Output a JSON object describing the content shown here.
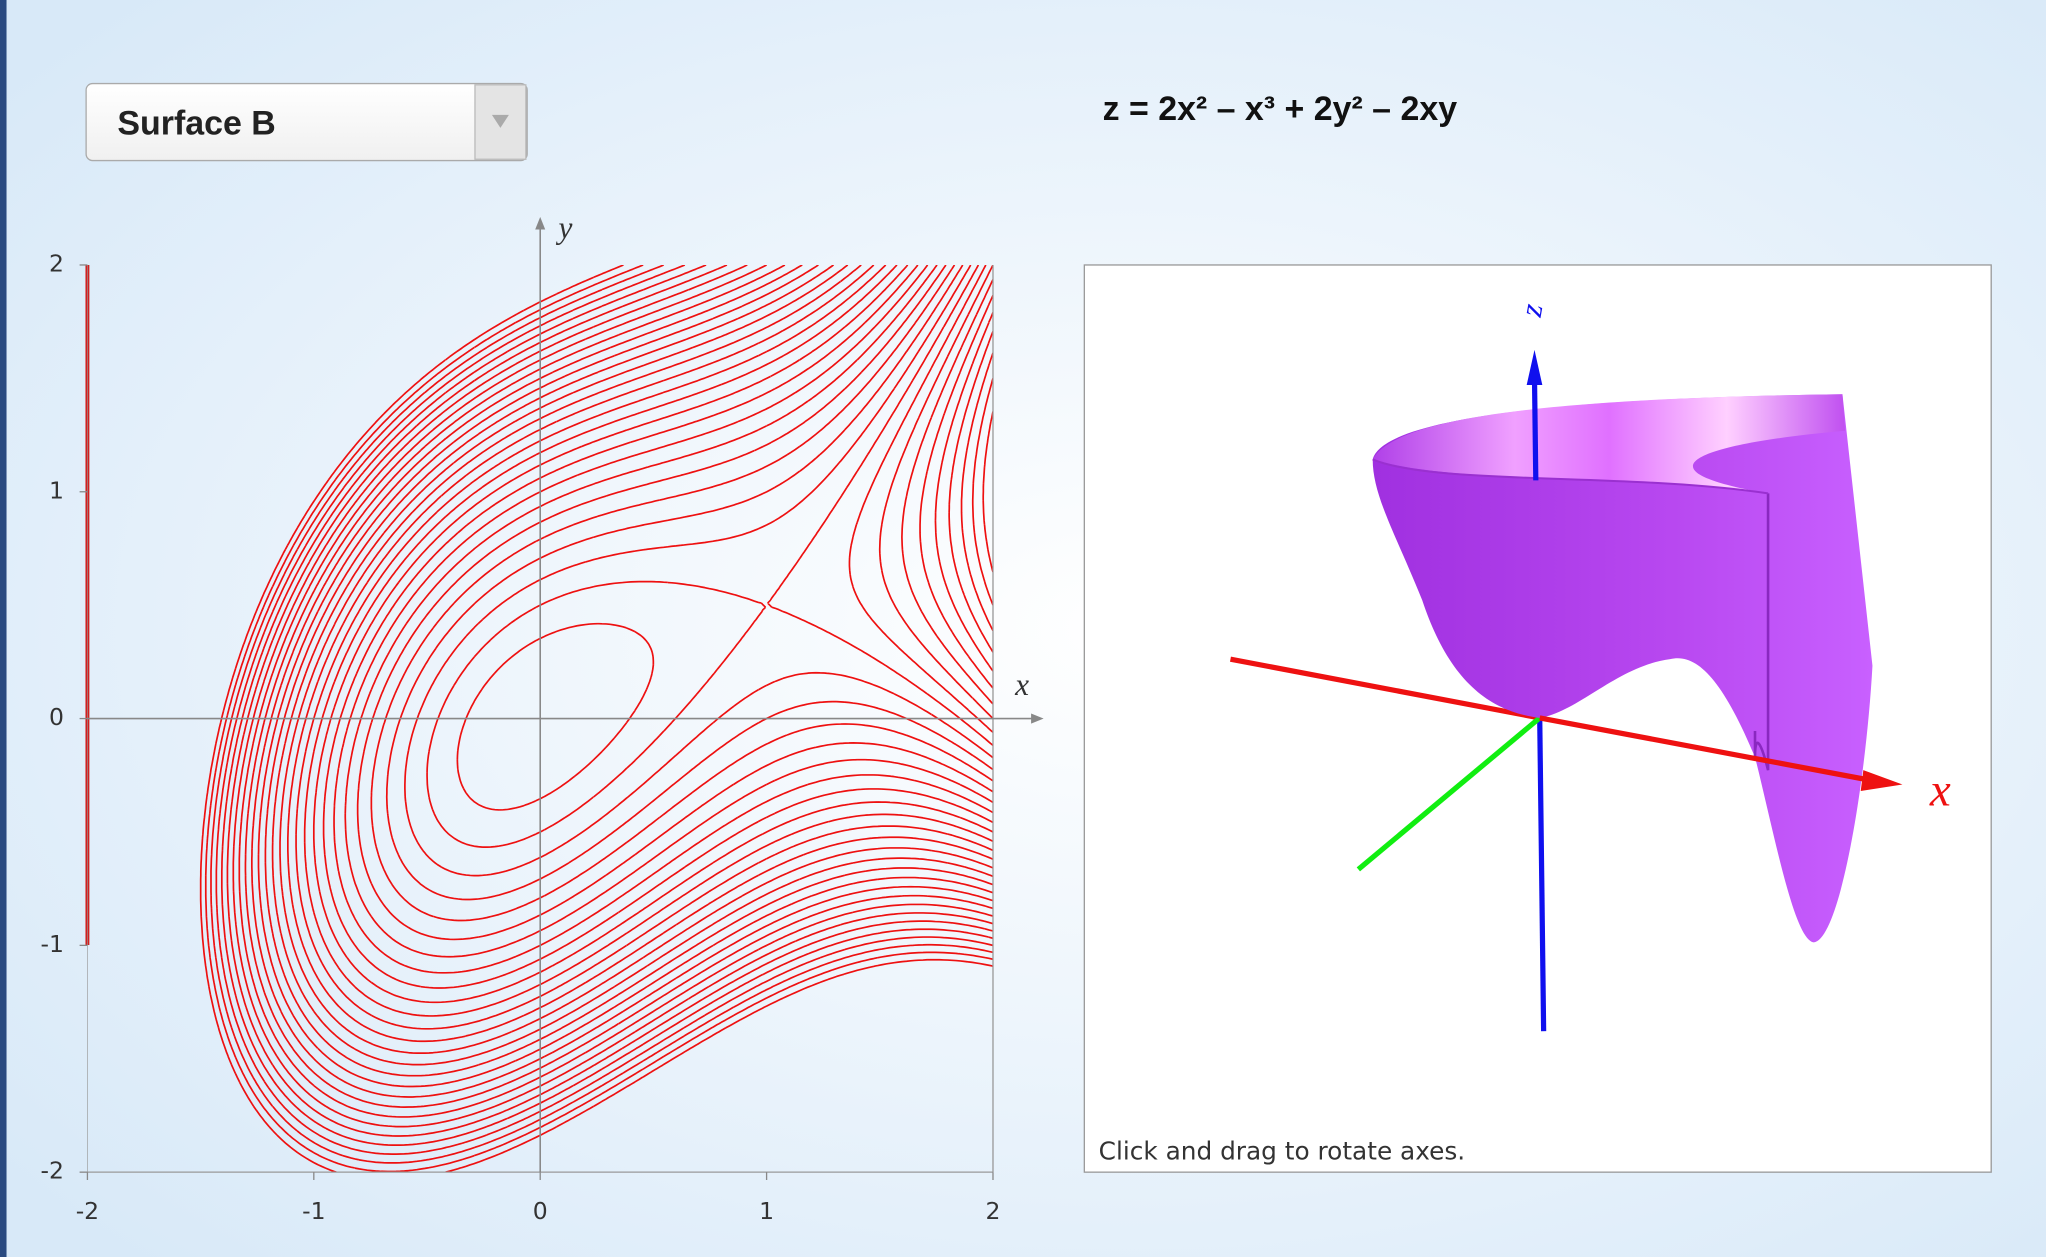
{
  "dropdown": {
    "selected": "Surface B"
  },
  "formula": "z = 2x² – x³ + 2y² – 2xy",
  "contour_plot": {
    "x_label": "x",
    "y_label": "y",
    "xlim": [
      -2,
      2
    ],
    "ylim": [
      -2,
      2
    ],
    "xticks": [
      -2,
      -1,
      0,
      1,
      2
    ],
    "yticks": [
      -2,
      -1,
      0,
      1,
      2
    ]
  },
  "view_3d": {
    "x_label": "x",
    "z_label": "z",
    "hint": "Click and drag to rotate axes."
  }
}
